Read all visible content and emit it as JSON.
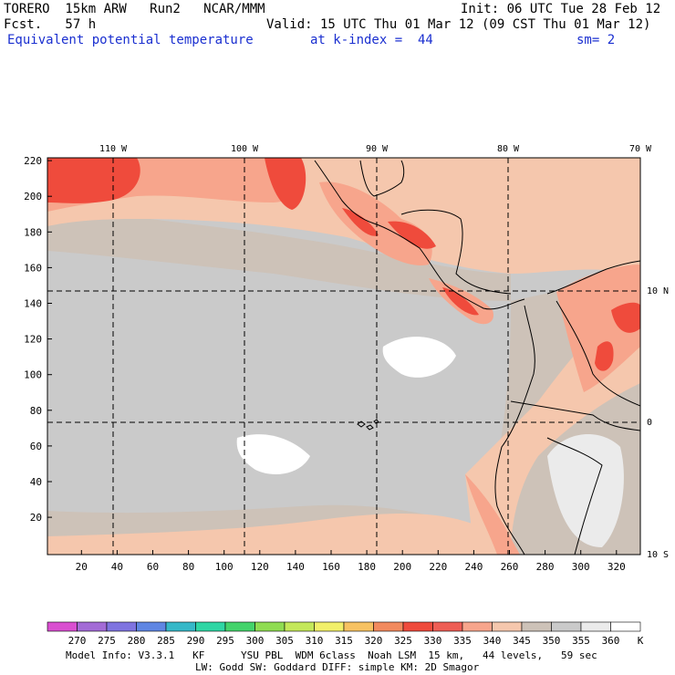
{
  "header": {
    "model": "TORERO  15km ARW   Run2   NCAR/MMM",
    "init": "Init: 06 UTC Tue 28 Feb 12",
    "fcst": "Fcst.   57 h",
    "valid": "Valid: 15 UTC Thu 01 Mar 12 (09 CST Thu 01 Mar 12)",
    "field": "Equivalent potential temperature",
    "level": "at k-index =  44",
    "smoothing": "sm= 2"
  },
  "map": {
    "lon_labels": [
      "110 W",
      "100 W",
      "90 W",
      "80 W",
      "70 W"
    ],
    "lat_labels": [
      "10 N",
      "0",
      "10 S"
    ],
    "y_ticks": [
      "220",
      "200",
      "180",
      "160",
      "140",
      "120",
      "100",
      "80",
      "60",
      "40",
      "20"
    ],
    "x_ticks": [
      "20",
      "40",
      "60",
      "80",
      "100",
      "120",
      "140",
      "160",
      "180",
      "200",
      "220",
      "240",
      "260",
      "280",
      "300",
      "320"
    ]
  },
  "colorbar": {
    "unit": "K",
    "labels": [
      "270",
      "275",
      "280",
      "285",
      "290",
      "295",
      "300",
      "305",
      "310",
      "315",
      "320",
      "325",
      "330",
      "335",
      "340",
      "345",
      "350",
      "355",
      "360"
    ],
    "colors": [
      "#d94fd0",
      "#a36bd6",
      "#7f74e0",
      "#5f86e3",
      "#36b8c8",
      "#2fd6a4",
      "#44d36b",
      "#8fdc52",
      "#c4e85a",
      "#f2f06a",
      "#f7c262",
      "#f28a5e",
      "#ef4b3c",
      "#ee5e55",
      "#f7a58c",
      "#f5c7ad",
      "#cdc2b8",
      "#cacaca",
      "#ebebeb",
      "#ffffff"
    ]
  },
  "footer": {
    "line1": "Model Info: V3.3.1   KF      YSU PBL  WDM 6class  Noah LSM  15 km,   44 levels,   59 sec",
    "line2": "LW: Godd SW: Goddard DIFF: simple KM: 2D Smagor"
  }
}
